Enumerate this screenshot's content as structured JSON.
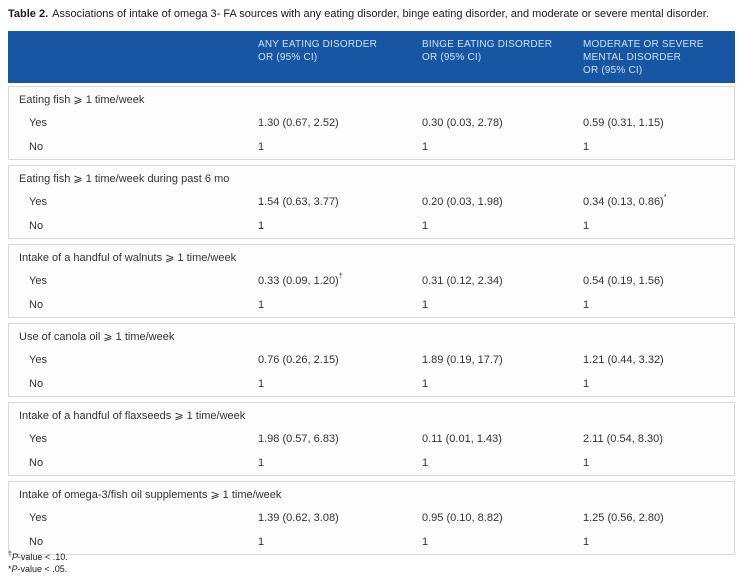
{
  "caption": {
    "label": "Table 2.",
    "text": "Associations of intake of omega 3- FA sources with any eating disorder, binge eating disorder, and moderate or severe mental disorder."
  },
  "colors": {
    "header_bg": "#1656a3",
    "header_text": "#cfe0f4",
    "border": "#d8d8d8",
    "body_text": "#333333"
  },
  "table": {
    "headers": [
      {
        "line1": "ANY EATING DISORDER",
        "line2": "OR (95% CI)",
        "line3": ""
      },
      {
        "line1": "BINGE EATING DISORDER",
        "line2": "OR (95% CI)",
        "line3": ""
      },
      {
        "line1": "MODERATE OR SEVERE",
        "line2": "MENTAL DISORDER",
        "line3": "OR (95% CI)"
      }
    ],
    "groups": [
      {
        "label": "Eating fish ⩾ 1 time/week",
        "yes": {
          "label": "Yes",
          "any": "1.30 (0.67, 2.52)",
          "binge": "0.30 (0.03, 2.78)",
          "mod": "0.59 (0.31, 1.15)"
        },
        "no": {
          "label": "No",
          "any": "1",
          "binge": "1",
          "mod": "1"
        }
      },
      {
        "label": "Eating fish ⩾ 1 time/week during past 6 mo",
        "yes": {
          "label": "Yes",
          "any": "1.54 (0.63, 3.77)",
          "binge": "0.20 (0.03, 1.98)",
          "mod": "0.34 (0.13, 0.86)",
          "mod_sup": "*"
        },
        "no": {
          "label": "No",
          "any": "1",
          "binge": "1",
          "mod": "1"
        }
      },
      {
        "label": "Intake of a handful of walnuts ⩾ 1 time/week",
        "yes": {
          "label": "Yes",
          "any": "0.33 (0.09, 1.20)",
          "any_sup": "†",
          "binge": "0.31 (0.12, 2.34)",
          "mod": "0.54 (0.19, 1.56)"
        },
        "no": {
          "label": "No",
          "any": "1",
          "binge": "1",
          "mod": "1"
        }
      },
      {
        "label": "Use of canola oil ⩾ 1 time/week",
        "yes": {
          "label": "Yes",
          "any": "0.76 (0.26, 2.15)",
          "binge": "1.89 (0.19, 17.7)",
          "mod": "1.21 (0.44, 3.32)"
        },
        "no": {
          "label": "No",
          "any": "1",
          "binge": "1",
          "mod": "1"
        }
      },
      {
        "label": "Intake of a handful of flaxseeds ⩾ 1 time/week",
        "yes": {
          "label": "Yes",
          "any": "1.98 (0.57, 6.83)",
          "binge": "0.11 (0.01, 1.43)",
          "mod": "2.11 (0.54, 8.30)"
        },
        "no": {
          "label": "No",
          "any": "1",
          "binge": "1",
          "mod": "1"
        }
      },
      {
        "label": "Intake of omega-3/fish oil supplements ⩾ 1 time/week",
        "yes": {
          "label": "Yes",
          "any": "1.39 (0.62, 3.08)",
          "binge": "0.95 (0.10, 8.82)",
          "mod": "1.25 (0.56, 2.80)"
        },
        "no": {
          "label": "No",
          "any": "1",
          "binge": "1",
          "mod": "1"
        }
      }
    ]
  },
  "footnotes": [
    {
      "marker": "†",
      "p": "P",
      "rest": "-value < .10."
    },
    {
      "marker": "*",
      "p": "P",
      "rest": "-value < .05."
    }
  ]
}
